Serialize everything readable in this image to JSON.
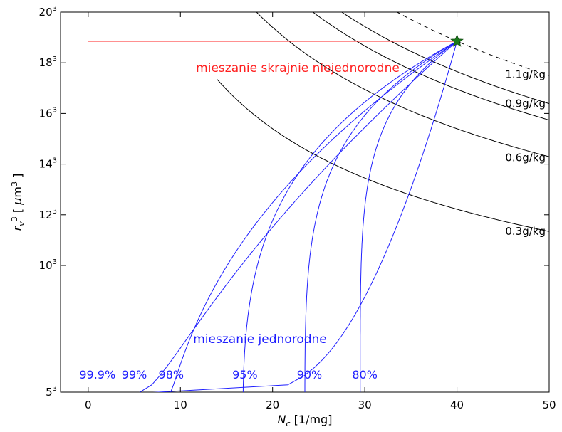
{
  "chart_data": {
    "type": "line",
    "xlabel": "N_c [1/mg]",
    "ylabel": "r_v^3 [μm^3]",
    "xlim": [
      -3,
      50
    ],
    "ylim_cubed": [
      125,
      8000
    ],
    "x_ticks": [
      {
        "value": 0,
        "label": "0"
      },
      {
        "value": 10,
        "label": "10"
      },
      {
        "value": 20,
        "label": "20"
      },
      {
        "value": 30,
        "label": "30"
      },
      {
        "value": 40,
        "label": "40"
      },
      {
        "value": 50,
        "label": "50"
      }
    ],
    "y_ticks": [
      {
        "value": 125,
        "base": "5",
        "exp": "3"
      },
      {
        "value": 1000,
        "base": "10",
        "exp": "3"
      },
      {
        "value": 1728,
        "base": "12",
        "exp": "3"
      },
      {
        "value": 2744,
        "base": "14",
        "exp": "3"
      },
      {
        "value": 4096,
        "base": "16",
        "exp": "3"
      },
      {
        "value": 5832,
        "base": "18",
        "exp": "3"
      },
      {
        "value": 8000,
        "base": "20",
        "exp": "3"
      }
    ],
    "extreme_line": {
      "label": "mieszanie skrajnie niejednorodne",
      "color": "#ff2020",
      "x": [
        0,
        40
      ],
      "y": 6700
    },
    "homogeneous_label": "mieszanie jednorodne",
    "star_point": {
      "x": 40,
      "y": 6700,
      "color": "#1a7a1a"
    },
    "lwc_curves": [
      {
        "label": "1.1g/kg",
        "k": 268000,
        "dashed": true
      },
      {
        "label": "0.9g/kg",
        "k": 220000,
        "dashed": false
      },
      {
        "label": "0.6g/kg",
        "k": 146000,
        "dashed": false
      },
      {
        "label": "0.3g/kg",
        "k": 73000,
        "dashed": false
      },
      {
        "label": "",
        "k": 195000,
        "dashed": false
      }
    ],
    "lwc_label_positions": [
      {
        "label": "1.1g/kg",
        "y": 5400
      },
      {
        "label": "0.9g/kg",
        "y": 4400
      },
      {
        "label": "0.6g/kg",
        "y": 2900
      },
      {
        "label": "0.3g/kg",
        "y": 1460
      }
    ],
    "mixing_curves": [
      {
        "label": "99.9%",
        "x0": 1,
        "alpha": 0.12
      },
      {
        "label": "99%",
        "x0": 5,
        "alpha": 0.55
      },
      {
        "label": "98%",
        "x0": 8.8,
        "alpha": 0.8
      },
      {
        "label": "95%",
        "x0": 16.8,
        "alpha": 1.35
      },
      {
        "label": "90%",
        "x0": 23.5,
        "alpha": 1.8
      },
      {
        "label": "80%",
        "x0": 29.5,
        "alpha": 2.3
      }
    ],
    "pct_labels": [
      {
        "label": "99.9%",
        "x": 1
      },
      {
        "label": "99%",
        "x": 5
      },
      {
        "label": "98%",
        "x": 9
      },
      {
        "label": "95%",
        "x": 17
      },
      {
        "label": "90%",
        "x": 24
      },
      {
        "label": "80%",
        "x": 30
      }
    ],
    "colors": {
      "curve_blue": "#1f1fff",
      "lwc_black": "#000000"
    }
  }
}
